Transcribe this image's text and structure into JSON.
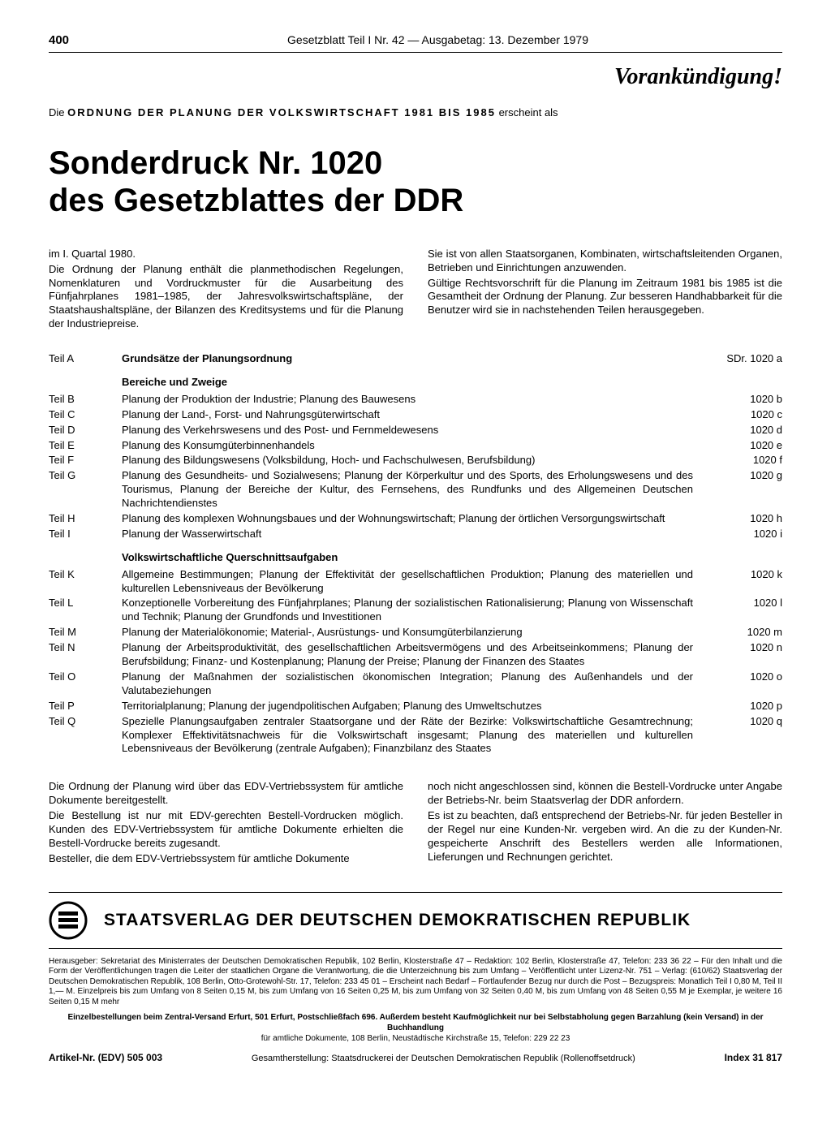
{
  "header": {
    "page_number": "400",
    "title": "Gesetzblatt Teil I Nr. 42 — Ausgabetag: 13. Dezember 1979"
  },
  "preannounce": "Vorankündigung!",
  "intro": {
    "prefix": "Die ",
    "emph": "ORDNUNG DER PLANUNG DER VOLKSWIRTSCHAFT 1981 BIS 1985",
    "suffix": " erscheint als"
  },
  "main_title_line1": "Sonderdruck Nr. 1020",
  "main_title_line2": "des Gesetzblattes der DDR",
  "col_left": {
    "p1": "im I. Quartal 1980.",
    "p2": "Die Ordnung der Planung enthält die planmethodischen Regelungen, Nomenklaturen und Vordruckmuster für die Ausarbeitung des Fünfjahrplanes 1981–1985, der Jahresvolkswirtschaftspläne, der Staatshaushaltspläne, der Bilanzen des Kreditsystems und für die Planung der Industriepreise."
  },
  "col_right": {
    "p1": "Sie ist von allen Staatsorganen, Kombinaten, wirtschaftsleitenden Organen, Betrieben und Einrichtungen anzuwenden.",
    "p2": "Gültige Rechtsvorschrift für die Planung im Zeitraum 1981 bis 1985 ist die Gesamtheit der Ordnung der Planung. Zur besseren Handhabbarkeit für die Benutzer wird sie in nachstehenden Teilen herausgegeben."
  },
  "toc": {
    "header": {
      "part": "Teil A",
      "desc": "Grundsätze der Planungsordnung",
      "code": "SDr. 1020 a"
    },
    "section1_title": "Bereiche und Zweige",
    "rows1": [
      {
        "part": "Teil B",
        "desc": "Planung der Produktion der Industrie; Planung des Bauwesens",
        "code": "1020 b"
      },
      {
        "part": "Teil C",
        "desc": "Planung der Land-, Forst- und Nahrungsgüterwirtschaft",
        "code": "1020 c"
      },
      {
        "part": "Teil D",
        "desc": "Planung des Verkehrswesens und des Post- und Fernmeldewesens",
        "code": "1020 d"
      },
      {
        "part": "Teil E",
        "desc": "Planung des Konsumgüterbinnenhandels",
        "code": "1020 e"
      },
      {
        "part": "Teil F",
        "desc": "Planung des Bildungswesens (Volksbildung, Hoch- und Fachschulwesen, Berufsbildung)",
        "code": "1020 f"
      },
      {
        "part": "Teil G",
        "desc": "Planung des Gesundheits- und Sozialwesens; Planung der Körperkultur und des Sports, des Erholungswesens und des Tourismus, Planung der Bereiche der Kultur, des Fernsehens, des Rundfunks und des Allgemeinen Deutschen Nachrichtendienstes",
        "code": "1020 g"
      },
      {
        "part": "Teil H",
        "desc": "Planung des komplexen Wohnungsbaues und der Wohnungswirtschaft; Planung der örtlichen Versorgungswirtschaft",
        "code": "1020 h"
      },
      {
        "part": "Teil I",
        "desc": "Planung der Wasserwirtschaft",
        "code": "1020 i"
      }
    ],
    "section2_title": "Volkswirtschaftliche Querschnittsaufgaben",
    "rows2": [
      {
        "part": "Teil K",
        "desc": "Allgemeine Bestimmungen; Planung der Effektivität der gesellschaftlichen Produktion; Planung des materiellen und kulturellen Lebensniveaus der Bevölkerung",
        "code": "1020 k"
      },
      {
        "part": "Teil L",
        "desc": "Konzeptionelle Vorbereitung des Fünfjahrplanes; Planung der sozialistischen Rationalisierung; Planung von Wissenschaft und Technik; Planung der Grundfonds und Investitionen",
        "code": "1020 l"
      },
      {
        "part": "Teil M",
        "desc": "Planung der Materialökonomie; Material-, Ausrüstungs- und Konsumgüterbilanzierung",
        "code": "1020 m"
      },
      {
        "part": "Teil N",
        "desc": "Planung der Arbeitsproduktivität, des gesellschaftlichen Arbeitsvermögens und des Arbeitseinkommens; Planung der Berufsbildung; Finanz- und Kostenplanung; Planung der Preise; Planung der Finanzen des Staates",
        "code": "1020 n"
      },
      {
        "part": "Teil O",
        "desc": "Planung der Maßnahmen der sozialistischen ökonomischen Integration; Planung des Außenhandels und der Valutabeziehungen",
        "code": "1020 o"
      },
      {
        "part": "Teil P",
        "desc": "Territorialplanung; Planung der jugendpolitischen Aufgaben; Planung des Umweltschutzes",
        "code": "1020 p"
      },
      {
        "part": "Teil Q",
        "desc": "Spezielle Planungsaufgaben zentraler Staatsorgane und der Räte der Bezirke: Volkswirtschaftliche Gesamtrechnung; Komplexer Effektivitätsnachweis für die Volkswirtschaft insgesamt; Planung des materiellen und kulturellen Lebensniveaus der Bevölkerung (zentrale Aufgaben); Finanzbilanz des Staates",
        "code": "1020 q"
      }
    ]
  },
  "bottom_cols": {
    "left": {
      "p1": "Die Ordnung der Planung wird über das EDV-Vertriebssystem für amtliche Dokumente bereitgestellt.",
      "p2": "Die Bestellung ist nur mit EDV-gerechten Bestell-Vordrucken möglich. Kunden des EDV-Vertriebssystem für amtliche Dokumente erhielten die Bestell-Vordrucke bereits zugesandt.",
      "p3": "Besteller, die dem EDV-Vertriebssystem für amtliche Dokumente"
    },
    "right": {
      "p1": "noch nicht angeschlossen sind, können die Bestell-Vordrucke unter Angabe der Betriebs-Nr. beim Staatsverlag der DDR anfordern.",
      "p2": "Es ist zu beachten, daß entsprechend der Betriebs-Nr. für jeden Besteller in der Regel nur eine Kunden-Nr. vergeben wird. An die zu der Kunden-Nr. gespeicherte Anschrift des Bestellers werden alle Informationen, Lieferungen und Rechnungen gerichtet."
    }
  },
  "publisher": "STAATSVERLAG DER DEUTSCHEN DEMOKRATISCHEN REPUBLIK",
  "imprint": {
    "p1": "Herausgeber: Sekretariat des Ministerrates der Deutschen Demokratischen Republik, 102 Berlin, Klosterstraße 47 – Redaktion: 102 Berlin, Klosterstraße 47, Telefon: 233 36 22 – Für den Inhalt und die Form der Veröffentlichungen tragen die Leiter der staatlichen Organe die Verantwortung, die die Unterzeichnung bis zum Umfang – Veröffentlicht unter Lizenz-Nr. 751 – Verlag: (610/62) Staatsverlag der Deutschen Demokratischen Republik, 108 Berlin, Otto-Grotewohl-Str. 17, Telefon: 233 45 01 – Erscheint nach Bedarf – Fortlaufender Bezug nur durch die Post – Bezugspreis: Monatlich Teil I 0,80 M, Teil II 1,— M. Einzelpreis bis zum Umfang von 8 Seiten 0,15 M, bis zum Umfang von 16 Seiten 0,25 M, bis zum Umfang von 32 Seiten 0,40 M, bis zum Umfang von 48 Seiten 0,55 M je Exemplar, je weitere 16 Seiten 0,15 M mehr",
    "p2": "Einzelbestellungen beim Zentral-Versand Erfurt, 501 Erfurt, Postschließfach 696. Außerdem besteht Kaufmöglichkeit nur bei Selbstabholung gegen Barzahlung (kein Versand) in der Buchhandlung",
    "p3": "für amtliche Dokumente, 108 Berlin, Neustädtische Kirchstraße 15, Telefon: 229 22 23"
  },
  "footer": {
    "artikel": "Artikel-Nr. (EDV) 505 003",
    "center": "Gesamtherstellung: Staatsdruckerei der Deutschen Demokratischen Republik (Rollenoffsetdruck)",
    "index": "Index 31 817"
  }
}
